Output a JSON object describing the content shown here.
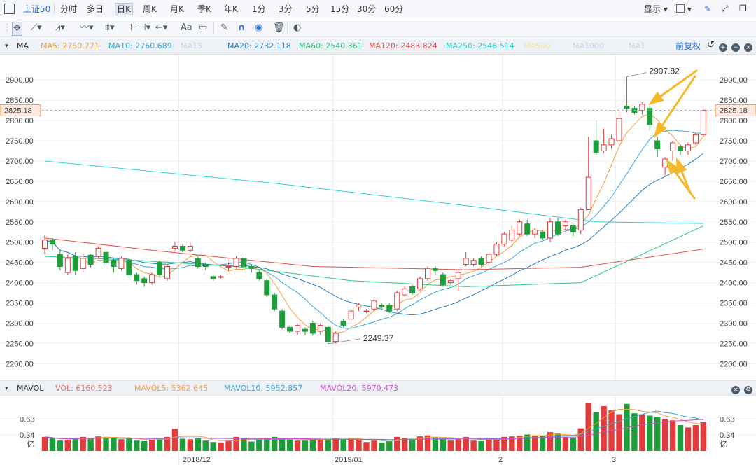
{
  "toolbar": {
    "stock_name": "上证50",
    "periods": [
      {
        "label": "分时",
        "active": false
      },
      {
        "label": "多日",
        "active": false
      },
      {
        "label": "日K",
        "active": true
      },
      {
        "label": "周K",
        "active": false
      },
      {
        "label": "月K",
        "active": false
      },
      {
        "label": "季K",
        "active": false
      },
      {
        "label": "年K",
        "active": false
      },
      {
        "label": "1分",
        "active": false
      },
      {
        "label": "3分",
        "active": false
      },
      {
        "label": "5分",
        "active": false
      },
      {
        "label": "15分",
        "active": false
      },
      {
        "label": "30分",
        "active": false
      },
      {
        "label": "60分",
        "active": false
      }
    ],
    "display_label": "显示",
    "text_tool": "Aa"
  },
  "ma_bar": {
    "label": "MA",
    "items": [
      {
        "text": "MA5: 2750.771",
        "color": "#f39c3c"
      },
      {
        "text": "MA10: 2760.689",
        "color": "#3aa6d8"
      },
      {
        "text": "MA15",
        "color": "#c9d6e6"
      },
      {
        "text": "MA20: 2732.118",
        "color": "#2b7fc1"
      },
      {
        "text": "MA60: 2540.361",
        "color": "#32c47a"
      },
      {
        "text": "MA120: 2483.824",
        "color": "#e0504f"
      },
      {
        "text": "MA250: 2546.514",
        "color": "#2ed0d0"
      },
      {
        "text": "MA500",
        "color": "#f2e4a0"
      },
      {
        "text": "MA1000",
        "color": "#c9d6e6"
      },
      {
        "text": "MA1",
        "color": "#c9d6e6"
      }
    ],
    "adjust_label": "前复权"
  },
  "vol_bar": {
    "label": "MAVOL",
    "items": [
      {
        "text": "VOL: 6160.523",
        "color": "#e46a6a"
      },
      {
        "text": "MAVOL5: 5362.645",
        "color": "#f39c3c"
      },
      {
        "text": "MAVOL10: 5952.857",
        "color": "#3aa6d8"
      },
      {
        "text": "MAVOL20: 5970.473",
        "color": "#c84fc8"
      }
    ]
  },
  "price_axis": {
    "ticks": [
      "2900.00",
      "2850.00",
      "2800.00",
      "2750.00",
      "2700.00",
      "2650.00",
      "2600.00",
      "2550.00",
      "2500.00",
      "2450.00",
      "2400.00",
      "2350.00",
      "2300.00",
      "2250.00",
      "2200.00"
    ],
    "current": "2825.18",
    "max_label": "2907.82",
    "min_label": "2249.37"
  },
  "volume_axis": {
    "ticks": [
      "0.68",
      "0.34"
    ],
    "unit": "亿"
  },
  "time_axis": [
    "2018/12",
    "2019/01",
    "2",
    "3"
  ],
  "chart_data": {
    "type": "candlestick",
    "ylim": [
      2180,
      2940
    ],
    "volume_ylim_yi": [
      0,
      1.1
    ],
    "candles": [
      [
        2485,
        2505,
        2517,
        2470,
        0.3
      ],
      [
        2505,
        2495,
        2510,
        2480,
        0.27
      ],
      [
        2470,
        2440,
        2480,
        2430,
        0.22
      ],
      [
        2425,
        2460,
        2470,
        2420,
        0.24
      ],
      [
        2465,
        2430,
        2475,
        2420,
        0.26
      ],
      [
        2435,
        2460,
        2470,
        2425,
        0.3
      ],
      [
        2468,
        2445,
        2472,
        2438,
        0.28
      ],
      [
        2465,
        2485,
        2490,
        2460,
        0.31
      ],
      [
        2475,
        2450,
        2480,
        2440,
        0.3
      ],
      [
        2455,
        2440,
        2460,
        2425,
        0.27
      ],
      [
        2435,
        2460,
        2465,
        2430,
        0.25
      ],
      [
        2455,
        2420,
        2460,
        2410,
        0.28
      ],
      [
        2420,
        2405,
        2425,
        2395,
        0.22
      ],
      [
        2410,
        2400,
        2415,
        2390,
        0.21
      ],
      [
        2400,
        2420,
        2425,
        2395,
        0.24
      ],
      [
        2450,
        2420,
        2455,
        2415,
        0.28
      ],
      [
        2410,
        2440,
        2445,
        2405,
        0.3
      ],
      [
        2485,
        2490,
        2500,
        2480,
        0.47
      ],
      [
        2490,
        2480,
        2495,
        2475,
        0.26
      ],
      [
        2480,
        2490,
        2500,
        2475,
        0.25
      ],
      [
        2460,
        2440,
        2465,
        2435,
        0.27
      ],
      [
        2445,
        2440,
        2450,
        2430,
        0.22
      ],
      [
        2415,
        2410,
        2420,
        2405,
        0.19
      ],
      [
        2415,
        2415,
        2420,
        2410,
        0.18
      ],
      [
        2440,
        2440,
        2450,
        2430,
        0.22
      ],
      [
        2440,
        2460,
        2465,
        2435,
        0.3
      ],
      [
        2460,
        2440,
        2465,
        2430,
        0.28
      ],
      [
        2440,
        2435,
        2445,
        2425,
        0.2
      ],
      [
        2425,
        2410,
        2430,
        2405,
        0.26
      ],
      [
        2405,
        2370,
        2410,
        2365,
        0.27
      ],
      [
        2370,
        2335,
        2375,
        2330,
        0.3
      ],
      [
        2330,
        2290,
        2335,
        2285,
        0.26
      ],
      [
        2290,
        2280,
        2295,
        2275,
        0.24
      ],
      [
        2280,
        2295,
        2300,
        2270,
        0.22
      ],
      [
        2285,
        2280,
        2290,
        2270,
        0.22
      ],
      [
        2300,
        2275,
        2305,
        2270,
        0.25
      ],
      [
        2280,
        2295,
        2300,
        2270,
        0.24
      ],
      [
        2290,
        2255,
        2295,
        2249,
        0.26
      ],
      [
        2255,
        2275,
        2280,
        2250,
        0.27
      ],
      [
        2305,
        2295,
        2310,
        2290,
        0.25
      ],
      [
        2310,
        2330,
        2335,
        2305,
        0.28
      ],
      [
        2340,
        2345,
        2350,
        2330,
        0.24
      ],
      [
        2330,
        2330,
        2335,
        2325,
        0.19
      ],
      [
        2335,
        2355,
        2360,
        2330,
        0.22
      ],
      [
        2345,
        2340,
        2350,
        2335,
        0.18
      ],
      [
        2345,
        2330,
        2350,
        2325,
        0.21
      ],
      [
        2335,
        2375,
        2380,
        2330,
        0.3
      ],
      [
        2370,
        2385,
        2390,
        2365,
        0.27
      ],
      [
        2390,
        2375,
        2395,
        2370,
        0.26
      ],
      [
        2385,
        2410,
        2415,
        2380,
        0.31
      ],
      [
        2410,
        2435,
        2440,
        2405,
        0.33
      ],
      [
        2435,
        2430,
        2440,
        2420,
        0.3
      ],
      [
        2420,
        2395,
        2425,
        2390,
        0.26
      ],
      [
        2400,
        2405,
        2410,
        2395,
        0.22
      ],
      [
        2410,
        2425,
        2430,
        2380,
        0.26
      ],
      [
        2445,
        2460,
        2475,
        2440,
        0.3
      ],
      [
        2445,
        2455,
        2460,
        2440,
        0.22
      ],
      [
        2460,
        2445,
        2465,
        2440,
        0.21
      ],
      [
        2450,
        2470,
        2475,
        2445,
        0.24
      ],
      [
        2470,
        2495,
        2500,
        2465,
        0.27
      ],
      [
        2495,
        2520,
        2525,
        2490,
        0.3
      ],
      [
        2505,
        2530,
        2540,
        2500,
        0.31
      ],
      [
        2520,
        2550,
        2555,
        2515,
        0.32
      ],
      [
        2545,
        2520,
        2555,
        2515,
        0.35
      ],
      [
        2520,
        2530,
        2535,
        2510,
        0.33
      ],
      [
        2525,
        2510,
        2530,
        2505,
        0.32
      ],
      [
        2510,
        2550,
        2560,
        2500,
        0.4
      ],
      [
        2550,
        2520,
        2560,
        2515,
        0.37
      ],
      [
        2540,
        2550,
        2555,
        2530,
        0.3
      ],
      [
        2540,
        2525,
        2545,
        2515,
        0.28
      ],
      [
        2530,
        2580,
        2585,
        2520,
        0.48
      ],
      [
        2580,
        2660,
        2760,
        2580,
        1.02
      ],
      [
        2750,
        2720,
        2800,
        2715,
        0.82
      ],
      [
        2725,
        2740,
        2780,
        2720,
        0.95
      ],
      [
        2740,
        2755,
        2765,
        2730,
        0.86
      ],
      [
        2750,
        2805,
        2815,
        2745,
        0.78
      ],
      [
        2835,
        2830,
        2908,
        2820,
        1.0
      ],
      [
        2830,
        2820,
        2835,
        2815,
        0.8
      ],
      [
        2825,
        2840,
        2845,
        2815,
        0.78
      ],
      [
        2830,
        2790,
        2835,
        2775,
        0.75
      ],
      [
        2750,
        2730,
        2760,
        2710,
        0.72
      ],
      [
        2685,
        2705,
        2710,
        2665,
        0.68
      ],
      [
        2725,
        2745,
        2750,
        2700,
        0.65
      ],
      [
        2735,
        2725,
        2740,
        2715,
        0.55
      ],
      [
        2725,
        2740,
        2745,
        2715,
        0.5
      ],
      [
        2745,
        2765,
        2770,
        2740,
        0.55
      ],
      [
        2765,
        2825,
        2828,
        2760,
        0.61
      ]
    ],
    "ma_lines": [
      {
        "name": "MA5",
        "color": "#f39c3c",
        "ma": 5
      },
      {
        "name": "MA10",
        "color": "#3aa6d8",
        "ma": 10
      },
      {
        "name": "MA20",
        "color": "#2b7fc1",
        "ma": 20
      },
      {
        "name": "MA60",
        "color": "#32c47a",
        "points": [
          [
            0,
            2465
          ],
          [
            12,
            2455
          ],
          [
            25,
            2440
          ],
          [
            40,
            2405
          ],
          [
            55,
            2390
          ],
          [
            70,
            2400
          ],
          [
            86,
            2540
          ]
        ]
      },
      {
        "name": "MA120",
        "color": "#e0504f",
        "points": [
          [
            0,
            2510
          ],
          [
            15,
            2478
          ],
          [
            35,
            2440
          ],
          [
            55,
            2432
          ],
          [
            70,
            2438
          ],
          [
            86,
            2483
          ]
        ]
      },
      {
        "name": "MA250",
        "color": "#2ed0d0",
        "points": [
          [
            0,
            2700
          ],
          [
            30,
            2645
          ],
          [
            55,
            2590
          ],
          [
            72,
            2550
          ],
          [
            86,
            2546
          ]
        ]
      }
    ],
    "vol_ma_lines": [
      {
        "name": "MAVOL5",
        "color": "#f39c3c",
        "ma": 5
      },
      {
        "name": "MAVOL10",
        "color": "#3aa6d8",
        "ma": 10
      },
      {
        "name": "MAVOL20",
        "color": "#c84fc8",
        "ma": 20
      }
    ],
    "colors": {
      "up": "#e23b3b",
      "down": "#1e9e3a",
      "up_fill": "#ffffff"
    }
  }
}
